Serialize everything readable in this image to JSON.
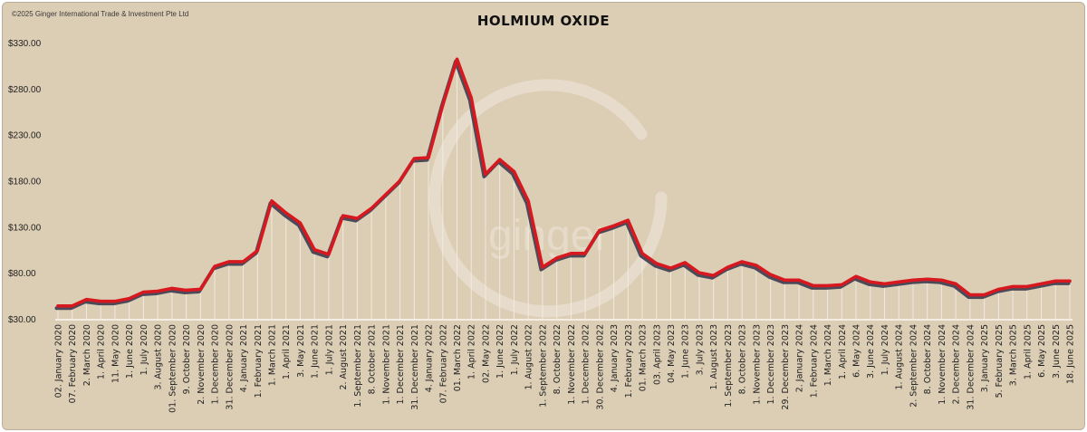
{
  "copyright": "©2025 Ginger International Trade & Investment Pte Ltd",
  "watermark_text": "ginger",
  "colors": {
    "background": "#dccdb5",
    "line": "#d7191f",
    "shadow": "#4a4a5a",
    "drop": "#f3ede3"
  },
  "chart_data": {
    "type": "line",
    "title": "HOLMIUM OXIDE",
    "xlabel": "",
    "ylabel": "",
    "ylim": [
      30,
      330
    ],
    "y_ticks": [
      30,
      80,
      130,
      180,
      230,
      280,
      330
    ],
    "y_tick_labels": [
      "$30.00",
      "$80.00",
      "$130.00",
      "$180.00",
      "$230.00",
      "$280.00",
      "$330.00"
    ],
    "grid": false,
    "categories": [
      "02. January 2020",
      "07. February 2020",
      "2. March 2020",
      "1. April 2020",
      "11. May 2020",
      "1. June 2020",
      "1. July 2020",
      "3. August 2020",
      "01. September 2020",
      "9. October 2020",
      "2. November 2020",
      "1. December 2020",
      "31. December 2020",
      "4. January 2021",
      "1. February 2021",
      "1. March 2021",
      "1. April 2021",
      "3. May 2021",
      "1. June 2021",
      "1. July 2021",
      "2. August 2021",
      "1. September 2021",
      "8. October 2021",
      "1. November 2021",
      "1. December 2021",
      "31. December 2021",
      "4. January 2022",
      "07. February 2022",
      "01. March 2022",
      "1. April 2022",
      "02. May 2022",
      "1. June 2022",
      "1. July 2022",
      "1. August 2022",
      "1. September 2022",
      "8. October 2022",
      "1. November 2022",
      "1. December 2022",
      "30. December 2022",
      "4. January 2023",
      "1. February 2023",
      "01. March 2023",
      "03. April 2023",
      "04. May 2023",
      "1. June 2023",
      "3. July 2023",
      "1. August 2023",
      "1. September 2023",
      "8. October 2023",
      "1. November 2023",
      "1. December 2023",
      "29. December 2023",
      "2. January 2024",
      "1. February 2024",
      "1. March 2024",
      "1. April 2024",
      "6. May 2024",
      "3. June 2024",
      "1. July 2024",
      "1. August 2024",
      "2. September 2024",
      "8. October 2024",
      "1. November 2024",
      "2. December 2024",
      "31. December 2024",
      "3. January 2025",
      "5. February 2025",
      "3. March 2025",
      "1. April 2025",
      "6. May 2025",
      "3. June 2025",
      "18. June 2025"
    ],
    "series": [
      {
        "values": [
          44,
          44,
          51,
          49,
          49,
          52,
          59,
          60,
          63,
          61,
          62,
          87,
          92,
          92,
          104,
          158,
          145,
          134,
          105,
          100,
          142,
          139,
          150,
          165,
          180,
          204,
          205,
          262,
          312,
          270,
          187,
          203,
          190,
          158,
          86,
          96,
          101,
          101,
          126,
          131,
          137,
          101,
          90,
          85,
          91,
          80,
          77,
          86,
          92,
          88,
          78,
          72,
          72,
          66,
          66,
          67,
          76,
          70,
          68,
          70,
          72,
          73,
          72,
          68,
          56,
          56,
          62,
          65,
          65,
          68,
          71,
          71
        ]
      }
    ]
  }
}
